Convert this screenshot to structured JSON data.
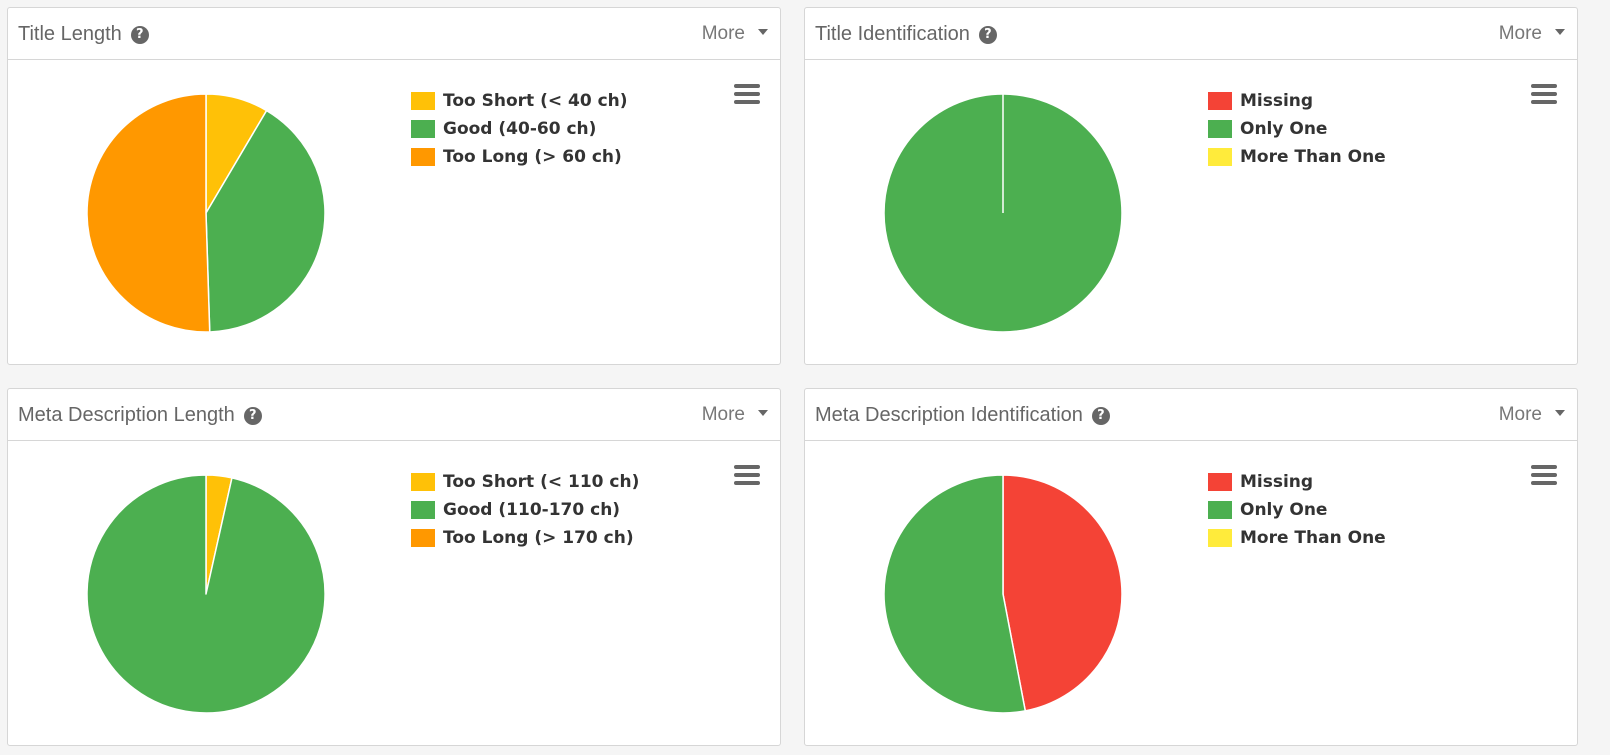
{
  "panels": [
    {
      "title": "Title Length",
      "more_label": "More",
      "icons": {
        "help": "help-icon",
        "menu": "hamburger-menu-icon",
        "dropdown": "caret-down-icon"
      }
    },
    {
      "title": "Title Identification",
      "more_label": "More",
      "icons": {
        "help": "help-icon",
        "menu": "hamburger-menu-icon",
        "dropdown": "caret-down-icon"
      }
    },
    {
      "title": "Meta Description Length",
      "more_label": "More",
      "icons": {
        "help": "help-icon",
        "menu": "hamburger-menu-icon",
        "dropdown": "caret-down-icon"
      }
    },
    {
      "title": "Meta Description Identification",
      "more_label": "More",
      "icons": {
        "help": "help-icon",
        "menu": "hamburger-menu-icon",
        "dropdown": "caret-down-icon"
      }
    }
  ],
  "chart_data": [
    {
      "type": "pie",
      "title": "Title Length",
      "categories": [
        "Too Short (< 40 ch)",
        "Good (40-60 ch)",
        "Too Long (> 60 ch)"
      ],
      "values": [
        8.5,
        41,
        50.5
      ],
      "colors": [
        "#FFC107",
        "#4CAF50",
        "#FF9800"
      ],
      "legend_position": "right"
    },
    {
      "type": "pie",
      "title": "Title Identification",
      "categories": [
        "Missing",
        "Only One",
        "More Than One"
      ],
      "values": [
        0,
        100,
        0
      ],
      "colors": [
        "#F44336",
        "#4CAF50",
        "#FFEB3B"
      ],
      "legend_position": "right"
    },
    {
      "type": "pie",
      "title": "Meta Description Length",
      "categories": [
        "Too Short (< 110 ch)",
        "Good (110-170 ch)",
        "Too Long (> 170 ch)"
      ],
      "values": [
        3.5,
        96.5,
        0
      ],
      "colors": [
        "#FFC107",
        "#4CAF50",
        "#FF9800"
      ],
      "legend_position": "right"
    },
    {
      "type": "pie",
      "title": "Meta Description Identification",
      "categories": [
        "Missing",
        "Only One",
        "More Than One"
      ],
      "values": [
        47,
        53,
        0
      ],
      "colors": [
        "#F44336",
        "#4CAF50",
        "#FFEB3B"
      ],
      "legend_position": "right"
    }
  ]
}
